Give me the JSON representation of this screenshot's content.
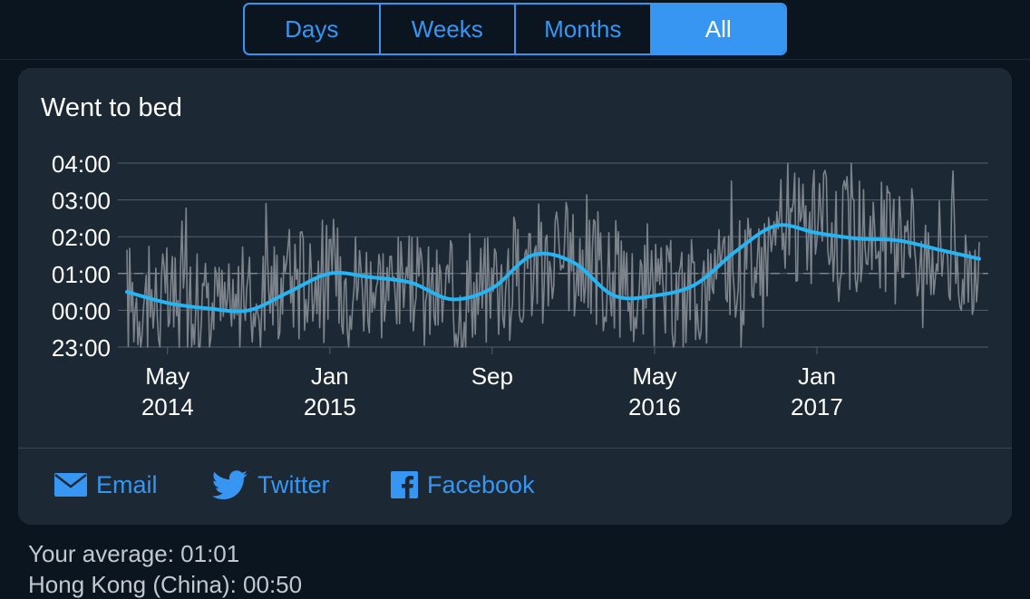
{
  "segmented": {
    "options": [
      "Days",
      "Weeks",
      "Months",
      "All"
    ],
    "selected": "All"
  },
  "card": {
    "title": "Went to bed"
  },
  "chart_data": {
    "type": "line",
    "title": "Went to bed",
    "x_range": [
      "2014-03",
      "2017-09"
    ],
    "y_range_labels": [
      "23:00",
      "04:00"
    ],
    "y_ticks": [
      "04:00",
      "03:00",
      "02:00",
      "01:00",
      "00:00",
      "23:00"
    ],
    "x_ticks": [
      {
        "line1": "May",
        "line2": "2014"
      },
      {
        "line1": "Jan",
        "line2": "2015"
      },
      {
        "line1": "Sep",
        "line2": ""
      },
      {
        "line1": "May",
        "line2": "2016"
      },
      {
        "line1": "Jan",
        "line2": "2017"
      }
    ],
    "grid": true,
    "series": [
      {
        "role": "daily",
        "color": "#7c838b",
        "values_approx_mean": [
          0.4,
          0.2,
          0.1,
          0.0,
          0.4,
          0.9,
          1.0,
          0.9,
          0.7,
          0.4,
          0.3,
          0.6,
          1.2,
          1.5,
          1.2,
          0.6,
          0.3,
          0.4,
          0.6,
          1.3,
          2.1,
          2.3,
          2.1,
          2.0,
          1.9,
          1.7,
          1.4
        ]
      },
      {
        "role": "trend",
        "color": "#27b4f3",
        "points": [
          [
            "2014-03",
            0.5
          ],
          [
            "2014-05",
            0.2
          ],
          [
            "2014-07",
            0.05
          ],
          [
            "2014-09",
            0.0
          ],
          [
            "2014-11",
            0.5
          ],
          [
            "2015-01",
            1.0
          ],
          [
            "2015-03",
            0.9
          ],
          [
            "2015-05",
            0.75
          ],
          [
            "2015-07",
            0.3
          ],
          [
            "2015-09",
            0.6
          ],
          [
            "2015-11",
            1.5
          ],
          [
            "2016-01",
            1.3
          ],
          [
            "2016-03",
            0.4
          ],
          [
            "2016-05",
            0.4
          ],
          [
            "2016-07",
            0.7
          ],
          [
            "2016-09",
            1.6
          ],
          [
            "2016-11",
            2.3
          ],
          [
            "2017-01",
            2.1
          ],
          [
            "2017-03",
            1.95
          ],
          [
            "2017-05",
            1.9
          ],
          [
            "2017-07",
            1.65
          ],
          [
            "2017-09",
            1.4
          ]
        ]
      }
    ],
    "reference_line": {
      "value": "01:00",
      "style": "dashed"
    }
  },
  "share": {
    "email": "Email",
    "twitter": "Twitter",
    "facebook": "Facebook"
  },
  "stats": {
    "line1": "Your average: 01:01",
    "line2": "Hong Kong (China): 00:50"
  },
  "colors": {
    "accent": "#3796f2",
    "trend": "#27b4f3",
    "background": "#0b1520",
    "card": "#1c2833"
  }
}
